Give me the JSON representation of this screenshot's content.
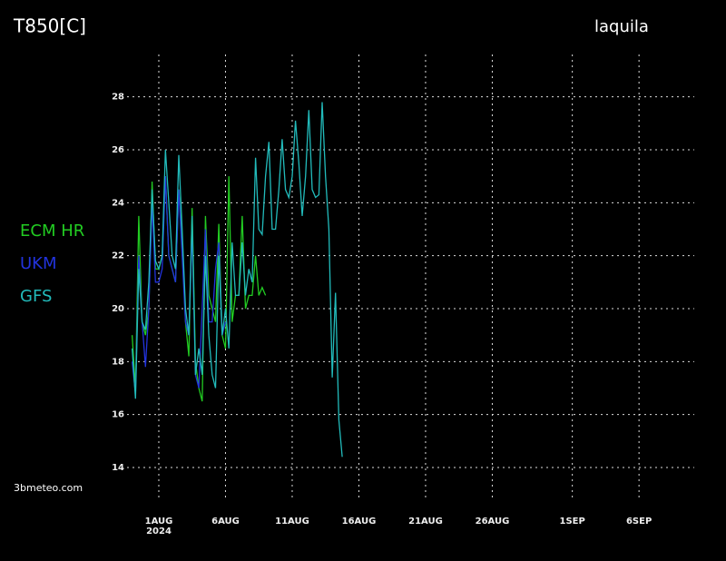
{
  "chart_data": {
    "type": "line",
    "title": "T850[C]",
    "location": "laquila",
    "source": "3bmeteo.com",
    "x_year_label": "2024",
    "x": [
      -2,
      -1.75,
      -1.5,
      -1.25,
      -1,
      -0.75,
      -0.5,
      -0.25,
      0,
      0.25,
      0.5,
      0.75,
      1,
      1.25,
      1.5,
      1.75,
      2,
      2.25,
      2.5,
      2.75,
      3,
      3.25,
      3.5,
      3.75,
      4,
      4.25,
      4.5,
      4.75,
      5,
      5.25,
      5.5,
      5.75,
      6,
      6.25,
      6.5,
      6.75,
      7,
      7.25,
      7.5,
      7.75,
      8,
      8.25,
      8.5,
      8.75,
      9,
      9.25,
      9.5,
      9.75,
      10,
      10.25,
      10.5,
      10.75,
      11,
      11.25,
      11.5,
      11.75,
      12,
      12.25,
      12.5,
      12.75,
      13,
      13.25,
      13.5,
      13.75
    ],
    "series": [
      {
        "name": "ECM  HR",
        "color": "#22cc22",
        "values": [
          19,
          17,
          23.5,
          19.5,
          19,
          20,
          24.8,
          21.5,
          21.5,
          22,
          25,
          22,
          21.5,
          21,
          24.5,
          22.5,
          19.5,
          18.2,
          23.8,
          18,
          17,
          16.5,
          23.5,
          20.5,
          20,
          19.5,
          23.2,
          19,
          18.5,
          25,
          19.5,
          20.5,
          20.5,
          23.5,
          20,
          20.5,
          20.5,
          22,
          20.5,
          20.8,
          20.5,
          null,
          null,
          null,
          null,
          null,
          null,
          null,
          null,
          null,
          null,
          null,
          null,
          null,
          null,
          null,
          null,
          null,
          null,
          null,
          null,
          null,
          null,
          null
        ]
      },
      {
        "name": "UKM",
        "color": "#2233dd",
        "values": [
          18,
          16.8,
          22,
          19.5,
          17.8,
          20,
          24,
          21,
          21,
          21.5,
          25,
          22,
          21.5,
          21,
          24.5,
          22,
          19.5,
          19,
          23,
          17.5,
          17,
          20,
          23,
          19.5,
          19.5,
          21.5,
          22.5,
          19,
          19.5,
          null,
          null,
          null,
          null,
          null,
          null,
          null,
          null,
          null,
          null,
          null,
          null,
          null,
          null,
          null,
          null,
          null,
          null,
          null,
          null,
          null,
          null,
          null,
          null,
          null,
          null,
          null,
          null,
          null,
          null,
          null,
          null,
          null,
          null,
          null
        ]
      },
      {
        "name": "GFS",
        "color": "#22bbbb",
        "values": [
          18.5,
          16.6,
          21.5,
          19.5,
          19.2,
          21,
          24.5,
          21.8,
          21.5,
          22,
          26,
          24,
          22,
          21.5,
          25.8,
          23,
          20,
          19,
          23.5,
          17.5,
          18.5,
          17.5,
          22,
          19,
          17.5,
          17,
          22,
          19,
          20,
          18.5,
          22.5,
          20.5,
          20.5,
          22.5,
          20.5,
          21.5,
          21,
          25.7,
          23,
          22.8,
          25,
          26.3,
          23,
          23,
          24.5,
          26.4,
          24.5,
          24.2,
          25,
          27.1,
          25.5,
          23.5,
          25,
          27.5,
          24.5,
          24.2,
          24.3,
          27.8,
          25,
          23,
          17.4,
          20.6,
          15.8,
          14.4
        ]
      }
    ],
    "xlim": [
      -2.38,
      40.14
    ],
    "xticks": [
      {
        "value": 0,
        "label": "1AUG"
      },
      {
        "value": 5,
        "label": "6AUG"
      },
      {
        "value": 10,
        "label": "11AUG"
      },
      {
        "value": 15,
        "label": "16AUG"
      },
      {
        "value": 20,
        "label": "21AUG"
      },
      {
        "value": 25,
        "label": "26AUG"
      },
      {
        "value": 31,
        "label": "1SEP"
      },
      {
        "value": 36,
        "label": "6SEP"
      }
    ],
    "ylim": [
      12.8,
      29.6
    ],
    "yticks": [
      14,
      16,
      18,
      20,
      22,
      24,
      26,
      28
    ],
    "grid": true
  }
}
